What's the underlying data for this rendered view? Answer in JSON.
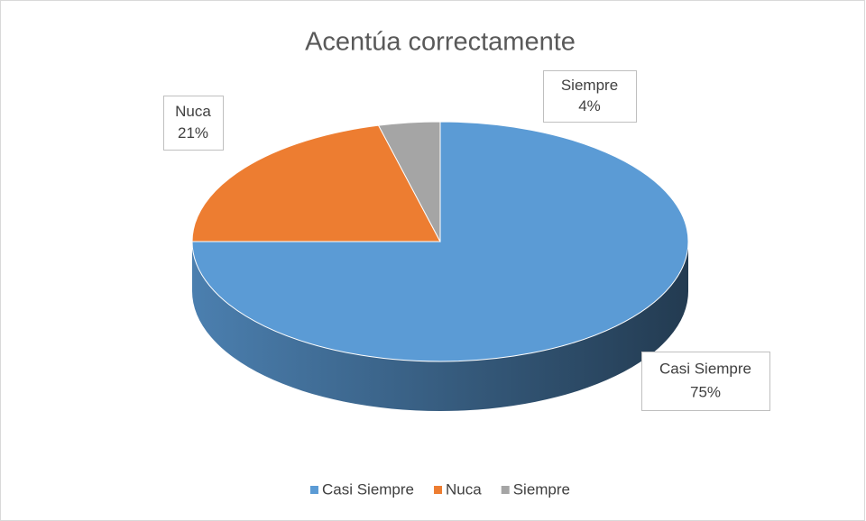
{
  "chart_data": {
    "type": "pie",
    "title": "Acentúa correctamente",
    "categories": [
      "Casi Siempre",
      "Nuca",
      "Siempre"
    ],
    "values": [
      75,
      21,
      4
    ],
    "value_labels": [
      "75%",
      "21%",
      "4%"
    ],
    "colors": [
      "#5b9bd5",
      "#ed7d31",
      "#a5a5a5"
    ],
    "legend": "bottom"
  }
}
